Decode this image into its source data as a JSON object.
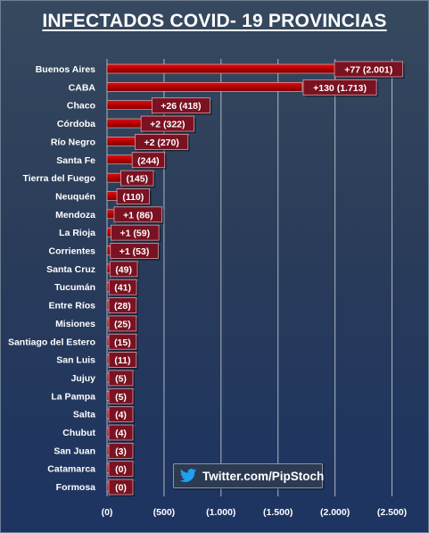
{
  "chart_data": {
    "type": "bar",
    "orientation": "horizontal",
    "title": "INFECTADOS COVID- 19  PROVINCIAS",
    "categories": [
      "Buenos Aires",
      "CABA",
      "Chaco",
      "Córdoba",
      "Río Negro",
      "Santa Fe",
      "Tierra del Fuego",
      "Neuquén",
      "Mendoza",
      "La Rioja",
      "Corrientes",
      "Santa Cruz",
      "Tucumán",
      "Entre Ríos",
      "Misiones",
      "Santiago del Estero",
      "San Luis",
      "Jujuy",
      "La Pampa",
      "Salta",
      "Chubut",
      "San Juan",
      "Catamarca",
      "Formosa"
    ],
    "values": [
      2001,
      1713,
      418,
      322,
      270,
      244,
      145,
      110,
      86,
      59,
      53,
      49,
      41,
      28,
      25,
      15,
      11,
      5,
      5,
      4,
      4,
      3,
      0,
      0
    ],
    "data_labels": [
      "+77  (2.001)",
      "+130  (1.713)",
      "+26  (418)",
      "+2  (322)",
      "+2  (270)",
      "(244)",
      "(145)",
      "(110)",
      "+1  (86)",
      "+1  (59)",
      "+1  (53)",
      "(49)",
      "(41)",
      "(28)",
      "(25)",
      "(15)",
      "(11)",
      "(5)",
      "(5)",
      "(4)",
      "(4)",
      "(3)",
      "(0)",
      "(0)"
    ],
    "x_ticks": [
      "(0)",
      "(500)",
      "(1.000)",
      "(1.500)",
      "(2.000)",
      "(2.500)"
    ],
    "x_tick_values": [
      0,
      500,
      1000,
      1500,
      2000,
      2500
    ],
    "xlim": [
      0,
      2500
    ],
    "grid": "vertical",
    "bar_color": "#c00000",
    "label_box_color": "#7a1222"
  },
  "watermark": {
    "text": "Twitter.com/PipStoch",
    "icon": "twitter-bird-icon",
    "icon_color": "#1da1f2"
  }
}
